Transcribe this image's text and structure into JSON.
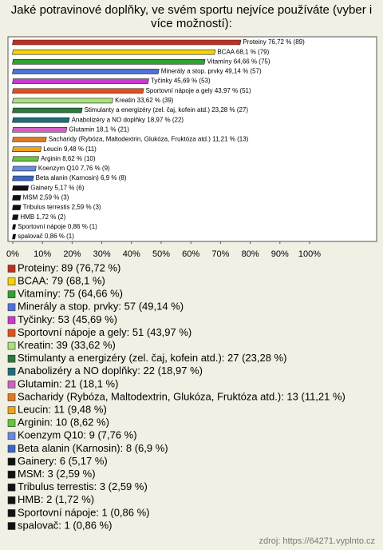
{
  "chart_data": {
    "type": "hbar",
    "title": "Jaké potravinové doplňky, ve svém sportu nejvíce používáte (vyber i více možností):",
    "source": "zdroj: https://64271.vyplnto.cz",
    "xlim": [
      0,
      100
    ],
    "xticks": [
      {
        "value": 0,
        "label": "0%"
      },
      {
        "value": 10,
        "label": "10%"
      },
      {
        "value": 20,
        "label": "20%"
      },
      {
        "value": 30,
        "label": "30%"
      },
      {
        "value": 40,
        "label": "40%"
      },
      {
        "value": 50,
        "label": "50%"
      },
      {
        "value": 60,
        "label": "60%"
      },
      {
        "value": 70,
        "label": "70%"
      },
      {
        "value": 80,
        "label": "80%"
      },
      {
        "value": 90,
        "label": "90%"
      },
      {
        "value": 100,
        "label": "100%"
      }
    ],
    "series": [
      {
        "name": "Proteiny: 89 (76,72 %)",
        "color": "#c0301e",
        "values": [
          76.72
        ],
        "value_labels": [
          "Proteiny 76,72 % (89)"
        ]
      },
      {
        "name": "BCAA: 79 (68,1 %)",
        "color": "#f5d20a",
        "values": [
          68.1
        ],
        "value_labels": [
          "BCAA 68,1 % (79)"
        ]
      },
      {
        "name": "Vitamíny: 75 (64,66 %)",
        "color": "#2fa32f",
        "values": [
          64.66
        ],
        "value_labels": [
          "Vitamíny 64,66 % (75)"
        ]
      },
      {
        "name": "Minerály a stop. prvky: 57 (49,14 %)",
        "color": "#4f72d8",
        "values": [
          49.14
        ],
        "value_labels": [
          "Minerály a stop. prvky 49,14 % (57)"
        ]
      },
      {
        "name": "Tyčinky: 53 (45,69 %)",
        "color": "#c83ad0",
        "values": [
          45.69
        ],
        "value_labels": [
          "Tyčinky 45,69 % (53)"
        ]
      },
      {
        "name": "Sportovní nápoje a gely: 51 (43,97 %)",
        "color": "#e4501c",
        "values": [
          43.97
        ],
        "value_labels": [
          "Sportovní nápoje a gely 43,97 % (51)"
        ]
      },
      {
        "name": "Kreatin: 39 (33,62 %)",
        "color": "#a9e27c",
        "values": [
          33.62
        ],
        "value_labels": [
          "Kreatin 33,62 % (39)"
        ]
      },
      {
        "name": "Stimulanty a energizéry (zel. čaj, kofein atd.): 27 (23,28 %)",
        "color": "#2a7a3c",
        "values": [
          23.28
        ],
        "value_labels": [
          "Stimulanty a energizéry (zel. čaj, kofein atd.) 23,28 % (27)"
        ]
      },
      {
        "name": "Anabolizéry a NO doplňky: 22 (18,97 %)",
        "color": "#1e6f78",
        "values": [
          18.97
        ],
        "value_labels": [
          "Anabolizéry a NO doplňky 18,97 % (22)"
        ]
      },
      {
        "name": "Glutamin: 21 (18,1 %)",
        "color": "#d35fc4",
        "values": [
          18.1
        ],
        "value_labels": [
          "Glutamin 18,1 % (21)"
        ]
      },
      {
        "name": "Sacharidy (Rybóza, Maltodextrin, Glukóza, Fruktóza atd.): 13 (11,21 %)",
        "color": "#e07a22",
        "values": [
          11.21
        ],
        "value_labels": [
          "Sacharidy (Rybóza, Maltodextrin, Glukóza, Fruktóza atd.) 11,21 % (13)"
        ]
      },
      {
        "name": "Leucin: 11 (9,48 %)",
        "color": "#f0a21e",
        "values": [
          9.48
        ],
        "value_labels": [
          "Leucin 9,48 % (11)"
        ]
      },
      {
        "name": "Arginin: 10 (8,62 %)",
        "color": "#66c73a",
        "values": [
          8.62
        ],
        "value_labels": [
          "Arginin 8,62 % (10)"
        ]
      },
      {
        "name": "Koenzym Q10: 9 (7,76 %)",
        "color": "#6a8ae0",
        "values": [
          7.76
        ],
        "value_labels": [
          "Koenzym Q10 7,76 % (9)"
        ]
      },
      {
        "name": "Beta alanin (Karnosin): 8 (6,9 %)",
        "color": "#3a66c8",
        "values": [
          6.9
        ],
        "value_labels": [
          "Beta alanin (Karnosin) 6,9 % (8)"
        ]
      },
      {
        "name": "Gainery: 6 (5,17 %)",
        "color": "#111111",
        "values": [
          5.17
        ],
        "value_labels": [
          "Gainery 5,17 % (6)"
        ]
      },
      {
        "name": "MSM: 3 (2,59 %)",
        "color": "#111111",
        "values": [
          2.59
        ],
        "value_labels": [
          "MSM 2,59 % (3)"
        ]
      },
      {
        "name": "Tribulus terrestis: 3 (2,59 %)",
        "color": "#111111",
        "values": [
          2.59
        ],
        "value_labels": [
          "Tribulus terrestis 2,59 % (3)"
        ]
      },
      {
        "name": "HMB: 2 (1,72 %)",
        "color": "#111111",
        "values": [
          1.72
        ],
        "value_labels": [
          "HMB 1,72 % (2)"
        ]
      },
      {
        "name": "Sportovní nápoje: 1 (0,86 %)",
        "color": "#111111",
        "values": [
          0.86
        ],
        "value_labels": [
          "Sportovní nápoje 0,86 % (1)"
        ]
      },
      {
        "name": "spalovač: 1 (0,86 %)",
        "color": "#111111",
        "values": [
          0.86
        ],
        "value_labels": [
          "spalovač 0,86 % (1)"
        ]
      }
    ]
  }
}
